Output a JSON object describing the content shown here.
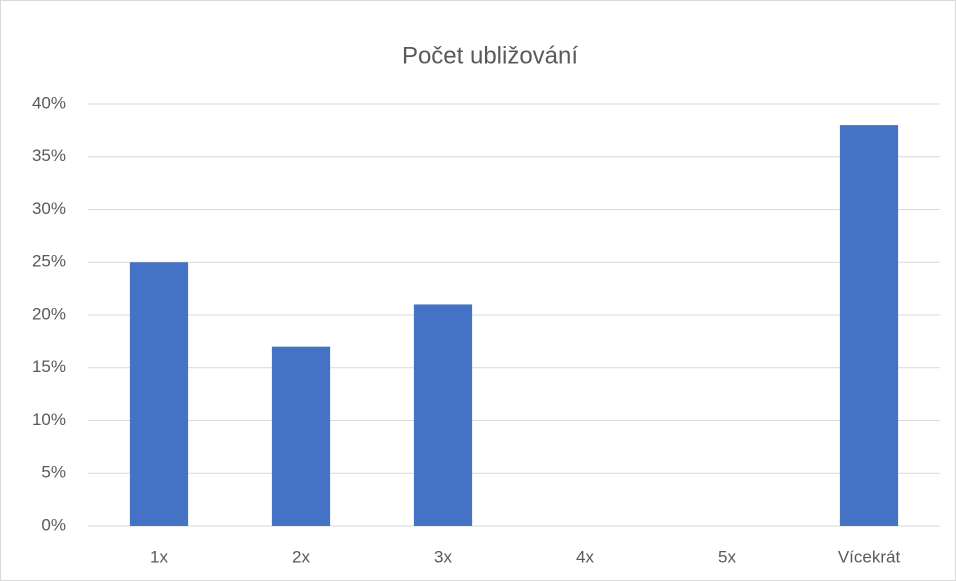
{
  "chart_data": {
    "type": "bar",
    "title": "Počet ubližování",
    "categories": [
      "1x",
      "2x",
      "3x",
      "4x",
      "5x",
      "Vícekrát"
    ],
    "values": [
      25,
      17,
      21,
      0,
      0,
      38
    ],
    "color": "#4472c4",
    "ylim": [
      0,
      40
    ],
    "yticks": [
      {
        "value": 0,
        "label": "0%"
      },
      {
        "value": 5,
        "label": "5%"
      },
      {
        "value": 10,
        "label": "10%"
      },
      {
        "value": 15,
        "label": "15%"
      },
      {
        "value": 20,
        "label": "20%"
      },
      {
        "value": 25,
        "label": "25%"
      },
      {
        "value": 30,
        "label": "30%"
      },
      {
        "value": 35,
        "label": "35%"
      },
      {
        "value": 40,
        "label": "40%"
      }
    ],
    "grid": true
  }
}
